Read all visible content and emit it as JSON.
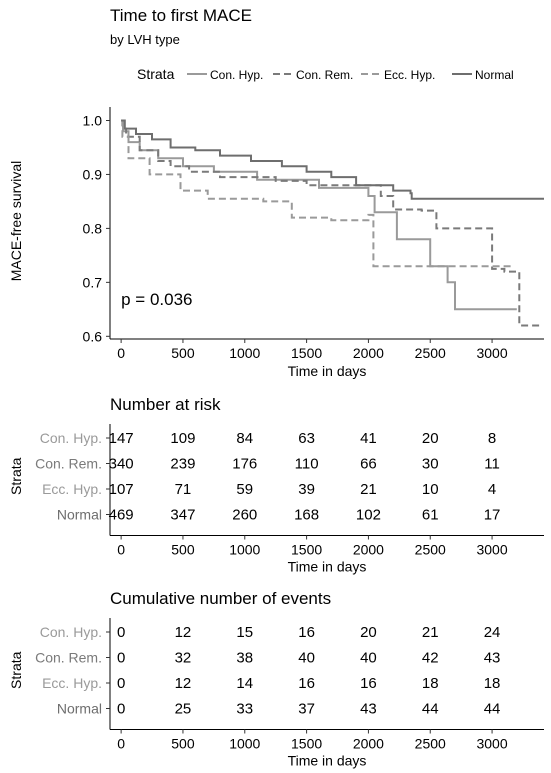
{
  "title": "Time to first MACE",
  "subtitle": "by LVH type",
  "legend": {
    "title": "Strata",
    "items": [
      {
        "label": "Con. Hyp.",
        "color": "#9a9a9a",
        "dash": "solid"
      },
      {
        "label": "Con. Rem.",
        "color": "#7a7a7a",
        "dash": "dashed"
      },
      {
        "label": "Ecc. Hyp.",
        "color": "#9a9a9a",
        "dash": "dashed"
      },
      {
        "label": "Normal",
        "color": "#6e6e6e",
        "dash": "solid"
      }
    ]
  },
  "chart_data": [
    {
      "type": "line",
      "subtype": "kaplan-meier-step",
      "ylabel": "MACE-free survival",
      "xlabel": "Time in days",
      "xlim": [
        -90,
        3420
      ],
      "ylim": [
        0.595,
        1.025
      ],
      "xticks": [
        0,
        500,
        1000,
        1500,
        2000,
        2500,
        3000
      ],
      "yticks": [
        0.6,
        0.7,
        0.8,
        0.9,
        1.0
      ],
      "ytick_labels": [
        "0.6",
        "0.7",
        "0.8",
        "0.9",
        "1.0"
      ],
      "annotation": "p = 0.036",
      "series": [
        {
          "name": "Con. Hyp.",
          "color": "#9a9a9a",
          "dash": "solid",
          "steps": [
            [
              0,
              1.0
            ],
            [
              15,
              0.98
            ],
            [
              60,
              0.96
            ],
            [
              150,
              0.945
            ],
            [
              300,
              0.93
            ],
            [
              500,
              0.915
            ],
            [
              750,
              0.905
            ],
            [
              1100,
              0.89
            ],
            [
              1600,
              0.875
            ],
            [
              2000,
              0.86
            ],
            [
              2050,
              0.83
            ],
            [
              2230,
              0.78
            ],
            [
              2500,
              0.73
            ],
            [
              2640,
              0.7
            ],
            [
              2700,
              0.65
            ],
            [
              3200,
              0.65
            ]
          ]
        },
        {
          "name": "Con. Rem.",
          "color": "#7a7a7a",
          "dash": "dashed",
          "steps": [
            [
              0,
              1.0
            ],
            [
              10,
              0.985
            ],
            [
              40,
              0.97
            ],
            [
              150,
              0.945
            ],
            [
              300,
              0.925
            ],
            [
              400,
              0.915
            ],
            [
              550,
              0.905
            ],
            [
              800,
              0.895
            ],
            [
              1250,
              0.888
            ],
            [
              1500,
              0.88
            ],
            [
              2100,
              0.86
            ],
            [
              2200,
              0.835
            ],
            [
              2430,
              0.833
            ],
            [
              2550,
              0.8
            ],
            [
              2900,
              0.8
            ],
            [
              3000,
              0.725
            ],
            [
              3100,
              0.72
            ],
            [
              3220,
              0.62
            ],
            [
              3400,
              0.62
            ]
          ]
        },
        {
          "name": "Ecc. Hyp.",
          "color": "#9a9a9a",
          "dash": "dashed",
          "steps": [
            [
              0,
              1.0
            ],
            [
              10,
              0.97
            ],
            [
              60,
              0.93
            ],
            [
              230,
              0.9
            ],
            [
              480,
              0.87
            ],
            [
              700,
              0.855
            ],
            [
              1150,
              0.85
            ],
            [
              1380,
              0.84
            ],
            [
              1380,
              0.82
            ],
            [
              1600,
              0.82
            ],
            [
              1700,
              0.815
            ],
            [
              2000,
              0.825
            ],
            [
              2040,
              0.73
            ],
            [
              2800,
              0.73
            ],
            [
              3100,
              0.73
            ],
            [
              3170,
              0.73
            ]
          ]
        },
        {
          "name": "Normal",
          "color": "#6e6e6e",
          "dash": "solid",
          "steps": [
            [
              0,
              1.0
            ],
            [
              30,
              0.985
            ],
            [
              120,
              0.975
            ],
            [
              250,
              0.965
            ],
            [
              400,
              0.95
            ],
            [
              600,
              0.945
            ],
            [
              800,
              0.935
            ],
            [
              1050,
              0.925
            ],
            [
              1300,
              0.915
            ],
            [
              1500,
              0.905
            ],
            [
              1700,
              0.895
            ],
            [
              1900,
              0.88
            ],
            [
              2200,
              0.87
            ],
            [
              2340,
              0.865
            ],
            [
              2350,
              0.855
            ],
            [
              3420,
              0.855
            ]
          ]
        }
      ]
    },
    {
      "type": "table",
      "title": "Number at risk",
      "ylabel": "Strata",
      "xlabel": "Time in days",
      "x": [
        0,
        500,
        1000,
        1500,
        2000,
        2500,
        3000
      ],
      "rows": [
        {
          "name": "Con. Hyp.",
          "values": [
            147,
            109,
            84,
            63,
            41,
            20,
            8
          ]
        },
        {
          "name": "Con. Rem.",
          "values": [
            340,
            239,
            176,
            110,
            66,
            30,
            11
          ]
        },
        {
          "name": "Ecc. Hyp.",
          "values": [
            107,
            71,
            59,
            39,
            21,
            10,
            4
          ]
        },
        {
          "name": "Normal",
          "values": [
            469,
            347,
            260,
            168,
            102,
            61,
            17
          ]
        }
      ]
    },
    {
      "type": "table",
      "title": "Cumulative number of events",
      "ylabel": "Strata",
      "xlabel": "Time in days",
      "x": [
        0,
        500,
        1000,
        1500,
        2000,
        2500,
        3000
      ],
      "rows": [
        {
          "name": "Con. Hyp.",
          "values": [
            0,
            12,
            15,
            16,
            20,
            21,
            24
          ]
        },
        {
          "name": "Con. Rem.",
          "values": [
            0,
            32,
            38,
            40,
            40,
            42,
            43
          ]
        },
        {
          "name": "Ecc. Hyp.",
          "values": [
            0,
            12,
            14,
            16,
            16,
            18,
            18
          ]
        },
        {
          "name": "Normal",
          "values": [
            0,
            25,
            33,
            37,
            43,
            44,
            44
          ]
        }
      ]
    }
  ]
}
